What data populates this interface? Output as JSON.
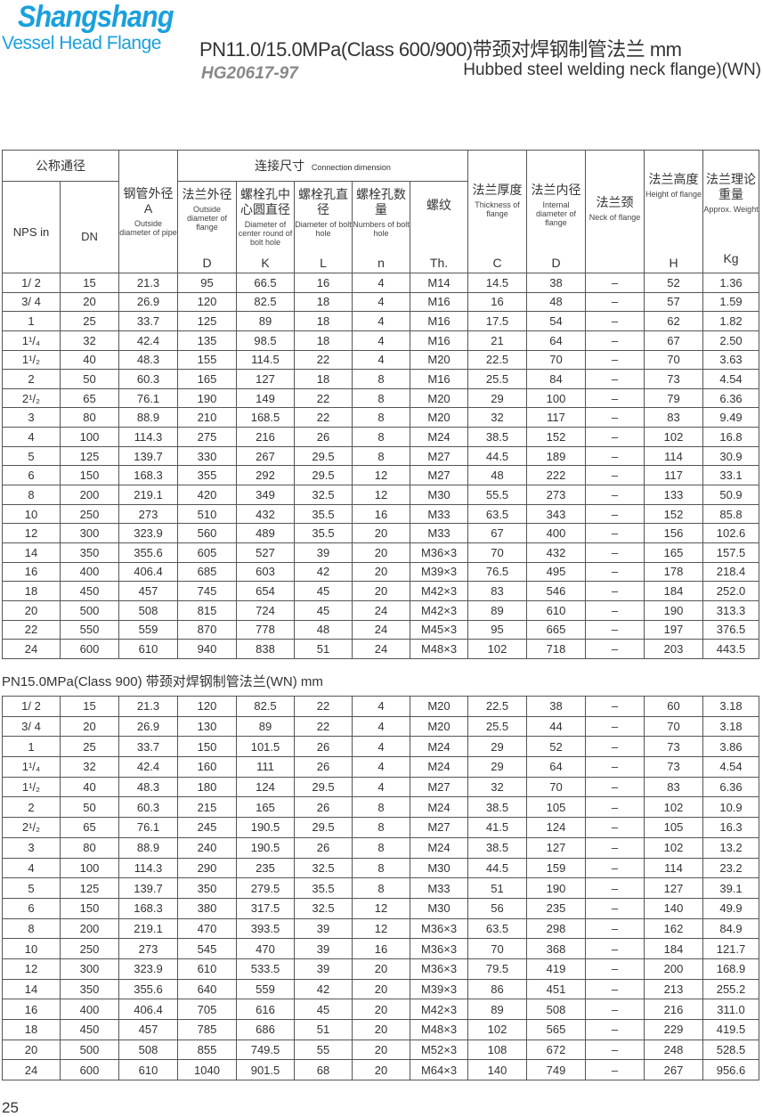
{
  "logo": {
    "line1": "Shangshang",
    "line2": "Vessel Head Flange"
  },
  "header": {
    "title": "PN11.0/15.0MPa(Class 600/900)带颈对焊钢制管法兰  mm",
    "standard": "HG20617-97",
    "subtitle": "Hubbed steel welding neck flange)(WN)"
  },
  "columns": {
    "nominal": "公称通径",
    "nps": "NPS in",
    "dn": "DN",
    "pipe_cn": "钢管外径",
    "pipe_sym": "A",
    "pipe_en": "Outside diameter of pipe",
    "conn_cn": "连接尺寸",
    "conn_en": "Connection dimension",
    "d_cn": "法兰外径",
    "d_en": "Outside diameter of flange",
    "d_sym": "D",
    "k_cn": "螺栓孔中心圆直径",
    "k_en": "Diameter of center round of bolt hole",
    "k_sym": "K",
    "l_cn": "螺栓孔直径",
    "l_en": "Diameter of bolt hole",
    "l_sym": "L",
    "n_cn": "螺栓孔数量",
    "n_en": "Numbers of bolt hole",
    "n_sym": "n",
    "th_cn": "螺纹",
    "th_sym": "Th.",
    "c_cn": "法兰厚度",
    "c_en": "Thickness of flange",
    "c_sym": "C",
    "id_cn": "法兰内径",
    "id_en": "Internal diameter of flange",
    "id_sym": "D",
    "neck_cn": "法兰颈",
    "neck_en": "Neck of flange",
    "h_cn": "法兰高度",
    "h_en": "Height of flange",
    "h_sym": "H",
    "w_cn": "法兰理论重量",
    "w_en": "Approx. Weight",
    "w_sym": "Kg"
  },
  "table1": [
    [
      "1/ 2",
      "15",
      "21.3",
      "95",
      "66.5",
      "16",
      "4",
      "M14",
      "14.5",
      "38",
      "–",
      "52",
      "1.36"
    ],
    [
      "3/ 4",
      "20",
      "26.9",
      "120",
      "82.5",
      "18",
      "4",
      "M16",
      "16",
      "48",
      "–",
      "57",
      "1.59"
    ],
    [
      "1",
      "25",
      "33.7",
      "125",
      "89",
      "18",
      "4",
      "M16",
      "17.5",
      "54",
      "–",
      "62",
      "1.82"
    ],
    [
      "1¹/₄",
      "32",
      "42.4",
      "135",
      "98.5",
      "18",
      "4",
      "M16",
      "21",
      "64",
      "–",
      "67",
      "2.50"
    ],
    [
      "1¹/₂",
      "40",
      "48.3",
      "155",
      "114.5",
      "22",
      "4",
      "M20",
      "22.5",
      "70",
      "–",
      "70",
      "3.63"
    ],
    [
      "2",
      "50",
      "60.3",
      "165",
      "127",
      "18",
      "8",
      "M16",
      "25.5",
      "84",
      "–",
      "73",
      "4.54"
    ],
    [
      "2¹/₂",
      "65",
      "76.1",
      "190",
      "149",
      "22",
      "8",
      "M20",
      "29",
      "100",
      "–",
      "79",
      "6.36"
    ],
    [
      "3",
      "80",
      "88.9",
      "210",
      "168.5",
      "22",
      "8",
      "M20",
      "32",
      "117",
      "–",
      "83",
      "9.49"
    ],
    [
      "4",
      "100",
      "114.3",
      "275",
      "216",
      "26",
      "8",
      "M24",
      "38.5",
      "152",
      "–",
      "102",
      "16.8"
    ],
    [
      "5",
      "125",
      "139.7",
      "330",
      "267",
      "29.5",
      "8",
      "M27",
      "44.5",
      "189",
      "–",
      "114",
      "30.9"
    ],
    [
      "6",
      "150",
      "168.3",
      "355",
      "292",
      "29.5",
      "12",
      "M27",
      "48",
      "222",
      "–",
      "117",
      "33.1"
    ],
    [
      "8",
      "200",
      "219.1",
      "420",
      "349",
      "32.5",
      "12",
      "M30",
      "55.5",
      "273",
      "–",
      "133",
      "50.9"
    ],
    [
      "10",
      "250",
      "273",
      "510",
      "432",
      "35.5",
      "16",
      "M33",
      "63.5",
      "343",
      "–",
      "152",
      "85.8"
    ],
    [
      "12",
      "300",
      "323.9",
      "560",
      "489",
      "35.5",
      "20",
      "M33",
      "67",
      "400",
      "–",
      "156",
      "102.6"
    ],
    [
      "14",
      "350",
      "355.6",
      "605",
      "527",
      "39",
      "20",
      "M36×3",
      "70",
      "432",
      "–",
      "165",
      "157.5"
    ],
    [
      "16",
      "400",
      "406.4",
      "685",
      "603",
      "42",
      "20",
      "M39×3",
      "76.5",
      "495",
      "–",
      "178",
      "218.4"
    ],
    [
      "18",
      "450",
      "457",
      "745",
      "654",
      "45",
      "20",
      "M42×3",
      "83",
      "546",
      "–",
      "184",
      "252.0"
    ],
    [
      "20",
      "500",
      "508",
      "815",
      "724",
      "45",
      "24",
      "M42×3",
      "89",
      "610",
      "–",
      "190",
      "313.3"
    ],
    [
      "22",
      "550",
      "559",
      "870",
      "778",
      "48",
      "24",
      "M45×3",
      "95",
      "665",
      "–",
      "197",
      "376.5"
    ],
    [
      "24",
      "600",
      "610",
      "940",
      "838",
      "51",
      "24",
      "M48×3",
      "102",
      "718",
      "–",
      "203",
      "443.5"
    ]
  ],
  "table2_title": "PN15.0MPa(Class 900) 带颈对焊钢制管法兰(WN)  mm",
  "table2": [
    [
      "1/ 2",
      "15",
      "21.3",
      "120",
      "82.5",
      "22",
      "4",
      "M20",
      "22.5",
      "38",
      "–",
      "60",
      "3.18"
    ],
    [
      "3/ 4",
      "20",
      "26.9",
      "130",
      "89",
      "22",
      "4",
      "M20",
      "25.5",
      "44",
      "–",
      "70",
      "3.18"
    ],
    [
      "1",
      "25",
      "33.7",
      "150",
      "101.5",
      "26",
      "4",
      "M24",
      "29",
      "52",
      "–",
      "73",
      "3.86"
    ],
    [
      "1¹/₄",
      "32",
      "42.4",
      "160",
      "111",
      "26",
      "4",
      "M24",
      "29",
      "64",
      "–",
      "73",
      "4.54"
    ],
    [
      "1¹/₂",
      "40",
      "48.3",
      "180",
      "124",
      "29.5",
      "4",
      "M27",
      "32",
      "70",
      "–",
      "83",
      "6.36"
    ],
    [
      "2",
      "50",
      "60.3",
      "215",
      "165",
      "26",
      "8",
      "M24",
      "38.5",
      "105",
      "–",
      "102",
      "10.9"
    ],
    [
      "2¹/₂",
      "65",
      "76.1",
      "245",
      "190.5",
      "29.5",
      "8",
      "M27",
      "41.5",
      "124",
      "–",
      "105",
      "16.3"
    ],
    [
      "3",
      "80",
      "88.9",
      "240",
      "190.5",
      "26",
      "8",
      "M24",
      "38.5",
      "127",
      "–",
      "102",
      "13.2"
    ],
    [
      "4",
      "100",
      "114.3",
      "290",
      "235",
      "32.5",
      "8",
      "M30",
      "44.5",
      "159",
      "–",
      "114",
      "23.2"
    ],
    [
      "5",
      "125",
      "139.7",
      "350",
      "279.5",
      "35.5",
      "8",
      "M33",
      "51",
      "190",
      "–",
      "127",
      "39.1"
    ],
    [
      "6",
      "150",
      "168.3",
      "380",
      "317.5",
      "32.5",
      "12",
      "M30",
      "56",
      "235",
      "–",
      "140",
      "49.9"
    ],
    [
      "8",
      "200",
      "219.1",
      "470",
      "393.5",
      "39",
      "12",
      "M36×3",
      "63.5",
      "298",
      "–",
      "162",
      "84.9"
    ],
    [
      "10",
      "250",
      "273",
      "545",
      "470",
      "39",
      "16",
      "M36×3",
      "70",
      "368",
      "–",
      "184",
      "121.7"
    ],
    [
      "12",
      "300",
      "323.9",
      "610",
      "533.5",
      "39",
      "20",
      "M36×3",
      "79.5",
      "419",
      "–",
      "200",
      "168.9"
    ],
    [
      "14",
      "350",
      "355.6",
      "640",
      "559",
      "42",
      "20",
      "M39×3",
      "86",
      "451",
      "–",
      "213",
      "255.2"
    ],
    [
      "16",
      "400",
      "406.4",
      "705",
      "616",
      "45",
      "20",
      "M42×3",
      "89",
      "508",
      "–",
      "216",
      "311.0"
    ],
    [
      "18",
      "450",
      "457",
      "785",
      "686",
      "51",
      "20",
      "M48×3",
      "102",
      "565",
      "–",
      "229",
      "419.5"
    ],
    [
      "20",
      "500",
      "508",
      "855",
      "749.5",
      "55",
      "20",
      "M52×3",
      "108",
      "672",
      "–",
      "248",
      "528.5"
    ],
    [
      "24",
      "600",
      "610",
      "1040",
      "901.5",
      "68",
      "20",
      "M64×3",
      "140",
      "749",
      "–",
      "267",
      "956.6"
    ]
  ],
  "page_number": "25",
  "colors": {
    "brand": "#1aa0dc",
    "text": "#333333",
    "standard": "#888888"
  }
}
